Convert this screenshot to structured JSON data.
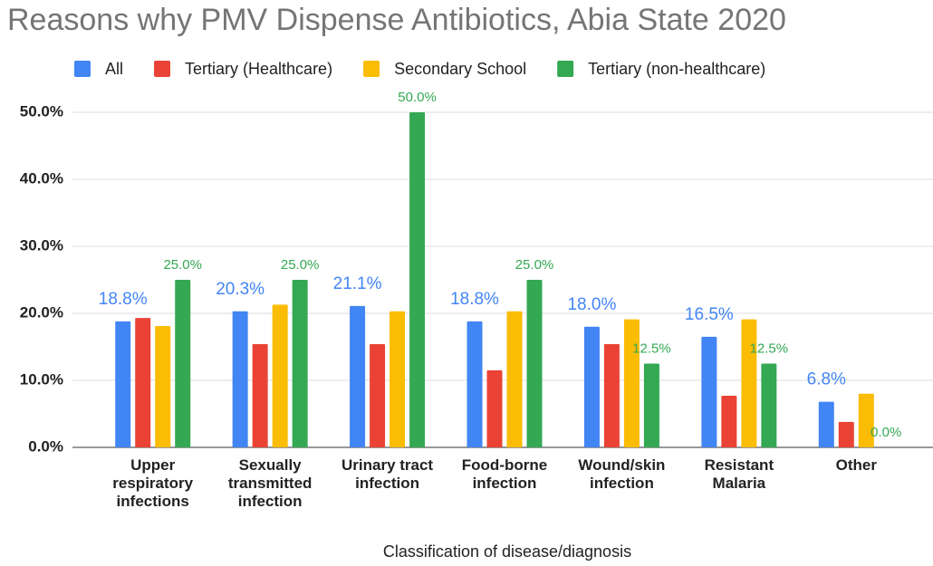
{
  "chart_data": {
    "type": "bar",
    "title": "Reasons why PMV Dispense Antibiotics, Abia State 2020",
    "x_label": "Classification of disease/diagnosis",
    "categories": [
      "Upper respiratory infections",
      "Sexually transmitted infection",
      "Urinary tract infection",
      "Food-borne infection",
      "Wound/skin infection",
      "Resistant Malaria",
      "Other"
    ],
    "series": [
      {
        "name": "All",
        "color": "#4285f4",
        "values": [
          18.8,
          20.3,
          21.1,
          18.8,
          18.0,
          16.5,
          6.8
        ],
        "value_labels": [
          "18.8%",
          "20.3%",
          "21.1%",
          "18.8%",
          "18.0%",
          "16.5%",
          "6.8%"
        ]
      },
      {
        "name": "Tertiary (Healthcare)",
        "color": "#ea4335",
        "values": [
          19.3,
          15.4,
          15.4,
          11.5,
          15.4,
          7.7,
          3.8
        ]
      },
      {
        "name": "Secondary School",
        "color": "#fbbc04",
        "values": [
          18.1,
          21.3,
          20.3,
          20.3,
          19.1,
          19.1,
          8.0
        ]
      },
      {
        "name": "Tertiary (non-healthcare)",
        "color": "#34a853",
        "values": [
          25.0,
          25.0,
          50.0,
          25.0,
          12.5,
          12.5,
          0.0
        ],
        "value_labels": [
          "25.0%",
          "25.0%",
          "50.0%",
          "25.0%",
          "12.5%",
          "12.5%",
          "0.0%"
        ]
      }
    ],
    "ylim": [
      0,
      50
    ],
    "yticks": [
      {
        "value": 0,
        "label": "0.0%"
      },
      {
        "value": 10,
        "label": "10.0%"
      },
      {
        "value": 20,
        "label": "20.0%"
      },
      {
        "value": 30,
        "label": "30.0%"
      },
      {
        "value": 40,
        "label": "40.0%"
      },
      {
        "value": 50,
        "label": "50.0%"
      }
    ],
    "grid": true,
    "legend": "top"
  }
}
